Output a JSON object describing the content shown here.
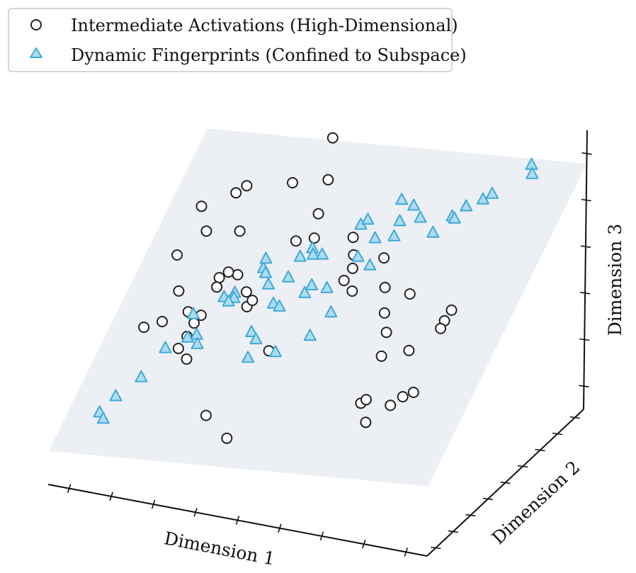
{
  "chart_data": {
    "type": "scatter",
    "projection": "3d",
    "title": "",
    "xlabel": "Dimension 1",
    "ylabel": "Dimension 2",
    "zlabel": "Dimension 3",
    "xlim": [
      0,
      10
    ],
    "ylim": [
      0,
      10
    ],
    "zlim": [
      0,
      10
    ],
    "grid": false,
    "legend_position": "top-left",
    "plane": {
      "label": "Subspace",
      "color": "#eceff3",
      "corners": [
        [
          0,
          0,
          1.2
        ],
        [
          10,
          0,
          2.5
        ],
        [
          10,
          10,
          8.8
        ],
        [
          0,
          10,
          7.5
        ]
      ]
    },
    "series": [
      {
        "name": "Intermediate Activations (High-Dimensional)",
        "marker": "circle",
        "edge_color": "#222222",
        "face_color": "#ffffff",
        "points": [
          [
            4.2,
            7.8,
            9.4
          ],
          [
            4.5,
            6.8,
            8.5
          ],
          [
            1.5,
            6.0,
            7.2
          ],
          [
            2.2,
            6.5,
            7.6
          ],
          [
            2.4,
            6.7,
            7.8
          ],
          [
            3.4,
            7.2,
            7.9
          ],
          [
            4.5,
            6.2,
            7.6
          ],
          [
            1.8,
            5.6,
            6.6
          ],
          [
            2.6,
            5.8,
            6.7
          ],
          [
            1.2,
            5.2,
            5.8
          ],
          [
            2.4,
            5.0,
            5.4
          ],
          [
            2.8,
            5.2,
            5.5
          ],
          [
            4.0,
            6.0,
            6.6
          ],
          [
            4.4,
            6.2,
            6.7
          ],
          [
            1.5,
            4.6,
            4.9
          ],
          [
            2.6,
            5.1,
            5.6
          ],
          [
            2.5,
            4.6,
            5.3
          ],
          [
            1.0,
            3.6,
            4.0
          ],
          [
            1.4,
            3.8,
            4.2
          ],
          [
            3.2,
            4.8,
            5.2
          ],
          [
            3.3,
            4.6,
            4.8
          ],
          [
            3.4,
            4.7,
            5.0
          ],
          [
            2.0,
            4.0,
            4.6
          ],
          [
            2.2,
            3.9,
            4.3
          ],
          [
            2.3,
            4.1,
            4.5
          ],
          [
            2.1,
            3.7,
            3.9
          ],
          [
            2.0,
            3.4,
            3.6
          ],
          [
            2.3,
            3.2,
            3.4
          ],
          [
            4.3,
            3.6,
            4.0
          ],
          [
            3.4,
            1.8,
            2.4
          ],
          [
            4.2,
            1.2,
            2.1
          ],
          [
            5.3,
            6.5,
            6.8
          ],
          [
            5.4,
            6.3,
            6.3
          ],
          [
            5.5,
            6.0,
            6.0
          ],
          [
            5.4,
            5.7,
            5.7
          ],
          [
            5.7,
            5.5,
            5.5
          ],
          [
            6.2,
            6.3,
            6.4
          ],
          [
            6.4,
            5.9,
            5.6
          ],
          [
            6.6,
            5.4,
            5.0
          ],
          [
            7.1,
            5.8,
            5.6
          ],
          [
            6.9,
            4.8,
            4.7
          ],
          [
            6.9,
            4.5,
            4.0
          ],
          [
            7.5,
            4.8,
            4.2
          ],
          [
            8.1,
            5.6,
            5.0
          ],
          [
            8.2,
            5.8,
            5.3
          ],
          [
            8.0,
            5.6,
            4.7
          ],
          [
            6.9,
            3.2,
            3.0
          ],
          [
            7.0,
            3.3,
            3.1
          ],
          [
            7.6,
            3.4,
            3.0
          ],
          [
            7.8,
            3.7,
            3.2
          ],
          [
            8.0,
            3.9,
            3.3
          ],
          [
            7.2,
            2.8,
            2.6
          ]
        ]
      },
      {
        "name": "Dynamic Fingerprints (Confined to Subspace)",
        "marker": "triangle",
        "edge_color": "#3fa9d8",
        "face_color": "#aedcf0",
        "points": [
          [
            0.8,
            1.3,
            2.1
          ],
          [
            0.9,
            1.3,
            1.9
          ],
          [
            1.1,
            1.6,
            2.6
          ],
          [
            1.6,
            2.0,
            3.2
          ],
          [
            1.9,
            2.8,
            3.9
          ],
          [
            2.4,
            3.0,
            4.3
          ],
          [
            2.6,
            3.1,
            4.4
          ],
          [
            2.7,
            2.9,
            4.2
          ],
          [
            2.3,
            3.6,
            4.8
          ],
          [
            2.9,
            4.1,
            5.3
          ],
          [
            3.1,
            4.3,
            5.4
          ],
          [
            3.2,
            4.0,
            5.4
          ],
          [
            3.1,
            3.9,
            5.3
          ],
          [
            3.6,
            4.9,
            6.1
          ],
          [
            3.7,
            4.8,
            6.0
          ],
          [
            3.9,
            4.5,
            5.8
          ],
          [
            4.4,
            5.3,
            6.5
          ],
          [
            4.6,
            5.6,
            6.7
          ],
          [
            4.7,
            5.4,
            6.6
          ],
          [
            4.3,
            4.8,
            6.0
          ],
          [
            4.2,
            4.1,
            5.4
          ],
          [
            4.4,
            4.0,
            5.4
          ],
          [
            4.9,
            4.4,
            5.8
          ],
          [
            5.0,
            4.6,
            6.0
          ],
          [
            4.0,
            3.2,
            4.8
          ],
          [
            4.2,
            3.0,
            4.7
          ],
          [
            4.8,
            2.8,
            4.5
          ],
          [
            4.2,
            2.5,
            4.3
          ],
          [
            5.5,
            3.3,
            5.0
          ],
          [
            5.8,
            5.6,
            6.7
          ],
          [
            6.2,
            5.4,
            6.6
          ],
          [
            6.0,
            6.2,
            7.1
          ],
          [
            5.5,
            6.5,
            7.3
          ],
          [
            5.6,
            6.7,
            7.4
          ],
          [
            6.4,
            6.8,
            7.5
          ],
          [
            6.2,
            7.4,
            7.9
          ],
          [
            6.9,
            6.9,
            7.7
          ],
          [
            6.5,
            6.2,
            7.3
          ],
          [
            5.4,
            4.6,
            6.0
          ],
          [
            5.8,
            3.9,
            5.6
          ],
          [
            3.5,
            5.3,
            6.2
          ],
          [
            4.9,
            5.5,
            6.6
          ],
          [
            7.4,
            6.5,
            7.5
          ],
          [
            7.7,
            7.0,
            7.9
          ],
          [
            6.6,
            7.2,
            7.9
          ],
          [
            8.3,
            7.5,
            8.4
          ],
          [
            8.5,
            7.6,
            8.6
          ],
          [
            9.2,
            8.4,
            9.4
          ],
          [
            9.3,
            8.2,
            9.2
          ],
          [
            7.8,
            6.9,
            7.9
          ],
          [
            7.9,
            7.4,
            8.1
          ]
        ]
      }
    ]
  }
}
